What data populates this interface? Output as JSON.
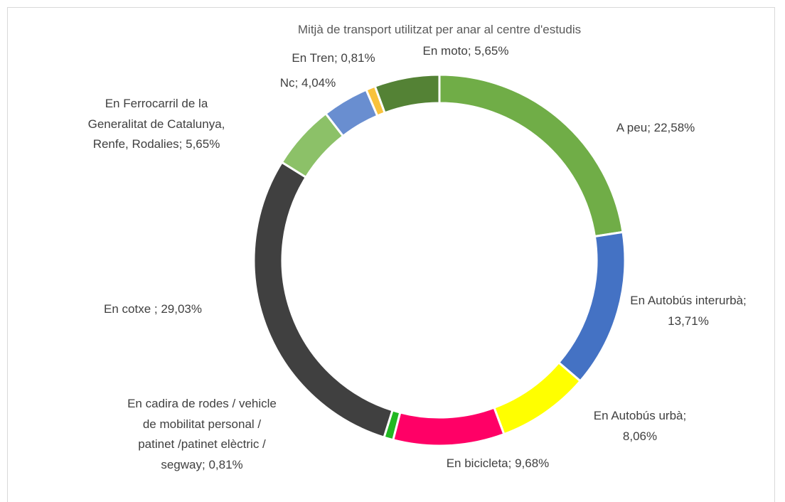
{
  "chart_data": {
    "type": "donut",
    "title": "Mitjà de transport utilitzat per anar al centre d'estudis",
    "categories": [
      "A peu",
      "En Autobús interurbà",
      "En Autobús urbà",
      "En bicicleta",
      "En cadira de rodes / vehicle de mobilitat personal / patinet /patinet elèctric / segway",
      "En cotxe ",
      "En Ferrocarril de la Generalitat de Catalunya, Renfe, Rodalies",
      "Nc",
      "En Tren",
      "En moto"
    ],
    "values": [
      22.58,
      13.71,
      8.06,
      9.68,
      0.81,
      29.03,
      5.65,
      4.04,
      0.81,
      5.65
    ],
    "value_labels": [
      "22,58%",
      "13,71%",
      "8,06%",
      "9,68%",
      "0,81%",
      "29,03%",
      "5,65%",
      "4,04%",
      "0,81%",
      "5,65%"
    ],
    "separator": "; ",
    "colors": [
      "#70ad47",
      "#4472c4",
      "#ffff00",
      "#ff0066",
      "#22b822",
      "#404040",
      "#8cc168",
      "#698ed0",
      "#f9c23c",
      "#548235"
    ]
  }
}
